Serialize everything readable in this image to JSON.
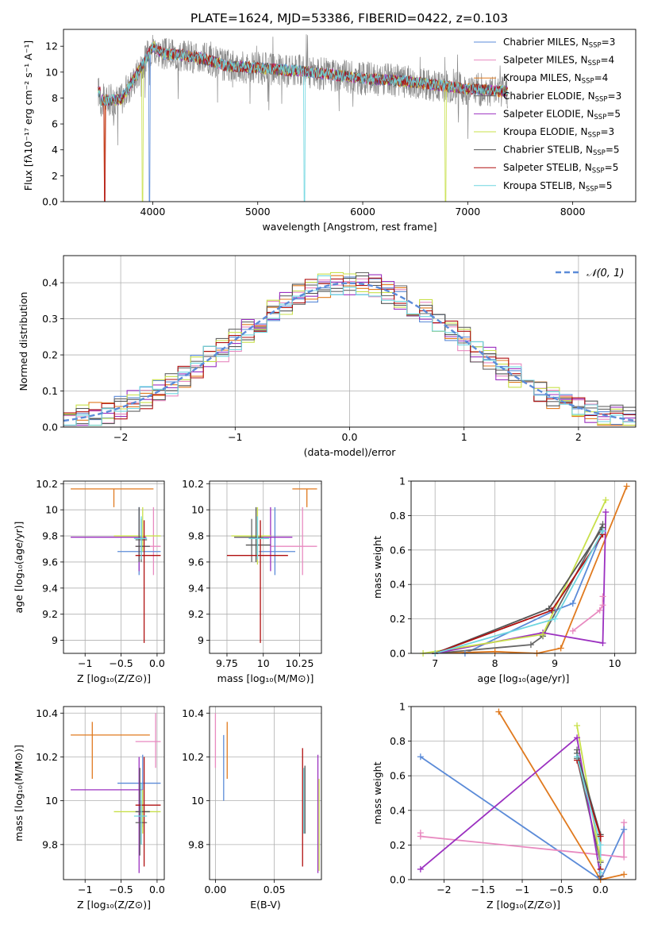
{
  "figure": {
    "title": "PLATE=1624, MJD=53386, FIBERID=0422, z=0.103",
    "colors": {
      "Chabrier MILES": "#5b8bd8",
      "Salpeter MILES": "#e88ac0",
      "Kroupa MILES": "#e07a1f",
      "Chabrier ELODIE": "#666666",
      "Salpeter ELODIE": "#9b30c0",
      "Kroupa ELODIE": "#c8e04a",
      "Chabrier STELIB": "#555555",
      "Salpeter STELIB": "#b01010",
      "Kroupa STELIB": "#6fd6e0",
      "spectrum": "#888888",
      "normal": "#5b8bd8"
    }
  },
  "chart_data": [
    {
      "id": "spectrum",
      "type": "line",
      "xlabel": "wavelength [Angstrom, rest frame]",
      "ylabel": "Flux [fλ10⁻¹⁷ erg cm⁻² s⁻¹ A⁻¹]",
      "xlim": [
        3150,
        8600
      ],
      "ylim": [
        0,
        13.3
      ],
      "xticks": [
        4000,
        5000,
        6000,
        7000,
        8000
      ],
      "yticks": [
        0,
        2,
        4,
        6,
        8,
        10,
        12
      ],
      "legend_position": "right",
      "legend": [
        {
          "model": "Chabrier MILES",
          "text": "Chabrier MILES, N",
          "sub": "SSP",
          "tail": "=3"
        },
        {
          "model": "Salpeter MILES",
          "text": "Salpeter MILES, N",
          "sub": "SSP",
          "tail": "=4"
        },
        {
          "model": "Kroupa MILES",
          "text": "Kroupa MILES, N",
          "sub": "SSP",
          "tail": "=4"
        },
        {
          "model": "Chabrier ELODIE",
          "text": "Chabrier ELODIE, N",
          "sub": "SSP",
          "tail": "=3"
        },
        {
          "model": "Salpeter ELODIE",
          "text": "Salpeter ELODIE, N",
          "sub": "SSP",
          "tail": "=5"
        },
        {
          "model": "Kroupa ELODIE",
          "text": "Kroupa ELODIE, N",
          "sub": "SSP",
          "tail": "=3"
        },
        {
          "model": "Chabrier STELIB",
          "text": "Chabrier STELIB, N",
          "sub": "SSP",
          "tail": "=5"
        },
        {
          "model": "Salpeter STELIB",
          "text": "Salpeter STELIB, N",
          "sub": "SSP",
          "tail": "=5"
        },
        {
          "model": "Kroupa STELIB",
          "text": "Kroupa STELIB, N",
          "sub": "SSP",
          "tail": "=5"
        }
      ],
      "continuum": {
        "x": [
          3500,
          3700,
          3900,
          4000,
          4100,
          4300,
          4500,
          4700,
          4860,
          5000,
          5200,
          5400,
          5600,
          5800,
          6000,
          6200,
          6400,
          6600,
          6800,
          7000,
          7200,
          7350
        ],
        "y": [
          7.8,
          7.9,
          10.5,
          12.0,
          11.4,
          11.3,
          11.0,
          10.5,
          10.4,
          10.3,
          10.2,
          10.1,
          9.9,
          9.7,
          9.5,
          9.4,
          9.3,
          9.1,
          8.9,
          8.7,
          8.6,
          8.5
        ]
      },
      "data_range": [
        3480,
        7380
      ],
      "model_range": [
        3480,
        7380
      ]
    },
    {
      "id": "residuals",
      "type": "line",
      "xlabel": "(data-model)/error",
      "ylabel": "Normed distribution",
      "xlim": [
        -2.5,
        2.5
      ],
      "ylim": [
        0,
        0.475
      ],
      "xticks": [
        -2,
        -1,
        0,
        1,
        2
      ],
      "yticks": [
        0.0,
        0.1,
        0.2,
        0.3,
        0.4
      ],
      "legend": [
        "𝒩(0, 1)"
      ],
      "legend_position": "top-right",
      "bins": 45
    },
    {
      "id": "age-vs-z",
      "type": "scatter",
      "xlabel": "Z [log₁₀(Z/Z⊙)]",
      "ylabel": "age  [log₁₀(age/yr)]",
      "xlim": [
        -1.3,
        0.1
      ],
      "ylim": [
        8.9,
        10.22
      ],
      "xticks": [
        -1.0,
        -0.5,
        0.0
      ],
      "yticks": [
        9.0,
        9.2,
        9.4,
        9.6,
        9.8,
        10.0,
        10.2
      ],
      "points": [
        {
          "model": "Kroupa MILES",
          "x": -0.6,
          "y": 10.16,
          "xlo": -1.2,
          "xhi": -0.05,
          "ylo": 10.02,
          "yhi": 10.16
        },
        {
          "model": "Salpeter MILES",
          "x": -0.05,
          "y": 9.72,
          "xlo": -0.3,
          "xhi": 0.05,
          "ylo": 9.5,
          "yhi": 10.02
        },
        {
          "model": "Chabrier MILES",
          "x": -0.25,
          "y": 9.68,
          "xlo": -0.55,
          "xhi": 0.05,
          "ylo": 9.5,
          "yhi": 10.02
        },
        {
          "model": "Salpeter ELODIE",
          "x": -0.25,
          "y": 9.79,
          "xlo": -1.2,
          "xhi": -0.15,
          "ylo": 9.53,
          "yhi": 9.82
        },
        {
          "model": "Kroupa ELODIE",
          "x": -0.2,
          "y": 9.8,
          "xlo": -0.6,
          "xhi": 0.05,
          "ylo": 9.68,
          "yhi": 10.02
        },
        {
          "model": "Chabrier ELODIE",
          "x": -0.22,
          "y": 9.77,
          "xlo": -0.3,
          "xhi": -0.14,
          "ylo": 9.6,
          "yhi": 9.93
        },
        {
          "model": "Chabrier STELIB",
          "x": -0.25,
          "y": 9.72,
          "xlo": -0.3,
          "xhi": -0.1,
          "ylo": 9.6,
          "yhi": 10.02
        },
        {
          "model": "Salpeter STELIB",
          "x": -0.18,
          "y": 9.65,
          "xlo": -0.3,
          "xhi": 0.05,
          "ylo": 8.98,
          "yhi": 9.92
        },
        {
          "model": "Kroupa STELIB",
          "x": -0.22,
          "y": 9.78,
          "xlo": -0.32,
          "xhi": -0.14,
          "ylo": 9.62,
          "yhi": 9.95
        }
      ]
    },
    {
      "id": "age-vs-mass",
      "type": "scatter",
      "xlabel": "mass [log₁₀(M/M⊙)]",
      "ylabel": "",
      "xlim": [
        9.63,
        10.4
      ],
      "ylim": [
        8.9,
        10.22
      ],
      "xticks": [
        9.75,
        10.0,
        10.25
      ],
      "yticks": [
        9.0,
        9.2,
        9.4,
        9.6,
        9.8,
        10.0,
        10.2
      ],
      "points": [
        {
          "model": "Kroupa MILES",
          "x": 10.3,
          "y": 10.16,
          "xlo": 10.2,
          "xhi": 10.37,
          "ylo": 10.02,
          "yhi": 10.16
        },
        {
          "model": "Salpeter MILES",
          "x": 10.27,
          "y": 9.72,
          "xlo": 10.05,
          "xhi": 10.37,
          "ylo": 9.5,
          "yhi": 10.02
        },
        {
          "model": "Chabrier MILES",
          "x": 10.08,
          "y": 9.68,
          "xlo": 9.97,
          "xhi": 10.22,
          "ylo": 9.5,
          "yhi": 10.02
        },
        {
          "model": "Salpeter ELODIE",
          "x": 10.05,
          "y": 9.79,
          "xlo": 9.8,
          "xhi": 10.2,
          "ylo": 9.53,
          "yhi": 10.02
        },
        {
          "model": "Kroupa ELODIE",
          "x": 9.96,
          "y": 9.8,
          "xlo": 9.78,
          "xhi": 10.05,
          "ylo": 9.58,
          "yhi": 10.02
        },
        {
          "model": "Chabrier ELODIE",
          "x": 9.92,
          "y": 9.79,
          "xlo": 9.8,
          "xhi": 10.0,
          "ylo": 9.6,
          "yhi": 9.93
        },
        {
          "model": "Chabrier STELIB",
          "x": 9.95,
          "y": 9.73,
          "xlo": 9.88,
          "xhi": 10.05,
          "ylo": 9.6,
          "yhi": 10.02
        },
        {
          "model": "Salpeter STELIB",
          "x": 9.98,
          "y": 9.65,
          "xlo": 9.75,
          "xhi": 10.17,
          "ylo": 8.98,
          "yhi": 9.92
        },
        {
          "model": "Kroupa STELIB",
          "x": 9.96,
          "y": 9.78,
          "xlo": 9.9,
          "xhi": 10.04,
          "ylo": 9.62,
          "yhi": 9.95
        }
      ]
    },
    {
      "id": "massweight-vs-age",
      "type": "line",
      "xlabel": "age  [log₁₀(age/yr)]",
      "ylabel": "mass weight",
      "xlim": [
        6.6,
        10.35
      ],
      "ylim": [
        0,
        1.0
      ],
      "xticks": [
        7,
        8,
        9,
        10
      ],
      "yticks": [
        0.0,
        0.2,
        0.4,
        0.6,
        0.8,
        1.0
      ],
      "series": [
        {
          "model": "Chabrier MILES",
          "x": [
            7.5,
            9.0,
            9.3,
            9.8
          ],
          "y": [
            0.0,
            0.25,
            0.29,
            0.71
          ]
        },
        {
          "model": "Salpeter MILES",
          "x": [
            9.3,
            9.75,
            9.8,
            9.8
          ],
          "y": [
            0.13,
            0.25,
            0.28,
            0.33
          ]
        },
        {
          "model": "Kroupa MILES",
          "x": [
            7.0,
            8.0,
            8.7,
            9.1,
            10.2
          ],
          "y": [
            0.0,
            0.01,
            0.0,
            0.03,
            0.97
          ]
        },
        {
          "model": "Chabrier ELODIE",
          "x": [
            7.0,
            8.6,
            8.8,
            9.8
          ],
          "y": [
            0.0,
            0.05,
            0.1,
            0.75
          ]
        },
        {
          "model": "Salpeter ELODIE",
          "x": [
            7.0,
            8.8,
            9.8,
            9.85
          ],
          "y": [
            0.0,
            0.12,
            0.06,
            0.82
          ]
        },
        {
          "model": "Kroupa ELODIE",
          "x": [
            6.8,
            8.8,
            9.85
          ],
          "y": [
            0.0,
            0.11,
            0.89
          ]
        },
        {
          "model": "Chabrier STELIB",
          "x": [
            7.0,
            8.9,
            9.8
          ],
          "y": [
            0.0,
            0.26,
            0.73
          ]
        },
        {
          "model": "Salpeter STELIB",
          "x": [
            7.0,
            8.95,
            9.8
          ],
          "y": [
            0.0,
            0.25,
            0.69
          ]
        },
        {
          "model": "Kroupa STELIB",
          "x": [
            7.0,
            9.0,
            9.8
          ],
          "y": [
            0.0,
            0.2,
            0.71
          ]
        }
      ]
    },
    {
      "id": "mass-vs-z",
      "type": "scatter",
      "xlabel": "Z [log₁₀(Z/Z⊙)]",
      "ylabel": "mass [log₁₀(M/M⊙)]",
      "xlim": [
        -1.3,
        0.1
      ],
      "ylim": [
        9.64,
        10.43
      ],
      "xticks": [
        -1.0,
        -0.5,
        0.0
      ],
      "yticks": [
        9.8,
        10.0,
        10.2,
        10.4
      ],
      "points": [
        {
          "model": "Kroupa MILES",
          "x": -0.9,
          "y": 10.3,
          "xlo": -1.2,
          "xhi": -0.1,
          "ylo": 10.1,
          "yhi": 10.36
        },
        {
          "model": "Salpeter MILES",
          "x": -0.02,
          "y": 10.27,
          "xlo": -0.3,
          "xhi": 0.05,
          "ylo": 10.15,
          "yhi": 10.4
        },
        {
          "model": "Chabrier MILES",
          "x": -0.2,
          "y": 10.08,
          "xlo": -0.55,
          "xhi": 0.05,
          "ylo": 9.88,
          "yhi": 10.21
        },
        {
          "model": "Salpeter ELODIE",
          "x": -0.25,
          "y": 10.05,
          "xlo": -1.2,
          "xhi": -0.2,
          "ylo": 9.67,
          "yhi": 10.2
        },
        {
          "model": "Kroupa ELODIE",
          "x": -0.2,
          "y": 9.95,
          "xlo": -0.6,
          "xhi": 0.05,
          "ylo": 9.85,
          "yhi": 10.05
        },
        {
          "model": "Chabrier ELODIE",
          "x": -0.22,
          "y": 9.9,
          "xlo": -0.3,
          "xhi": -0.14,
          "ylo": 9.8,
          "yhi": 10.0
        },
        {
          "model": "Chabrier STELIB",
          "x": -0.24,
          "y": 9.95,
          "xlo": -0.3,
          "xhi": -0.1,
          "ylo": 9.75,
          "yhi": 10.15
        },
        {
          "model": "Salpeter STELIB",
          "x": -0.18,
          "y": 9.98,
          "xlo": -0.3,
          "xhi": 0.05,
          "ylo": 9.7,
          "yhi": 10.2
        },
        {
          "model": "Kroupa STELIB",
          "x": -0.22,
          "y": 9.93,
          "xlo": -0.32,
          "xhi": -0.14,
          "ylo": 9.8,
          "yhi": 10.08
        }
      ]
    },
    {
      "id": "mass-vs-ebv",
      "type": "scatter",
      "xlabel": "E(B-V)",
      "ylabel": "",
      "xlim": [
        -0.005,
        0.09
      ],
      "ylim": [
        9.64,
        10.43
      ],
      "xticks": [
        0.0,
        0.05
      ],
      "xticklabels": [
        "0.00",
        "0.05"
      ],
      "yticks": [
        9.8,
        10.0,
        10.2,
        10.4
      ],
      "points": [
        {
          "model": "Salpeter MILES",
          "x": 0.0,
          "y": 10.27,
          "ylo": 10.15,
          "yhi": 10.4
        },
        {
          "model": "Chabrier MILES",
          "x": 0.007,
          "y": 10.15,
          "ylo": 10.0,
          "yhi": 10.3
        },
        {
          "model": "Kroupa MILES",
          "x": 0.01,
          "y": 10.23,
          "ylo": 10.1,
          "yhi": 10.36
        },
        {
          "model": "Salpeter STELIB",
          "x": 0.074,
          "y": 9.97,
          "ylo": 9.7,
          "yhi": 10.24
        },
        {
          "model": "Kroupa STELIB",
          "x": 0.075,
          "y": 10.0,
          "ylo": 9.85,
          "yhi": 10.15
        },
        {
          "model": "Chabrier STELIB",
          "x": 0.076,
          "y": 10.01,
          "ylo": 9.85,
          "yhi": 10.16
        },
        {
          "model": "Salpeter ELODIE",
          "x": 0.087,
          "y": 9.95,
          "ylo": 9.67,
          "yhi": 10.21
        },
        {
          "model": "Kroupa ELODIE",
          "x": 0.088,
          "y": 9.9,
          "ylo": 9.68,
          "yhi": 10.1
        }
      ]
    },
    {
      "id": "massweight-vs-z",
      "type": "line",
      "xlabel": "Z [log₁₀(Z/Z⊙)]",
      "ylabel": "mass weight",
      "xlim": [
        -2.42,
        0.45
      ],
      "ylim": [
        0,
        1.0
      ],
      "xticks": [
        -2.0,
        -1.5,
        -1.0,
        -0.5,
        0.0
      ],
      "yticks": [
        0.0,
        0.2,
        0.4,
        0.6,
        0.8,
        1.0
      ],
      "series": [
        {
          "model": "Chabrier MILES",
          "x": [
            -2.3,
            0.0,
            0.3
          ],
          "y": [
            0.71,
            0.0,
            0.29
          ]
        },
        {
          "model": "Salpeter MILES",
          "x": [
            -2.3,
            -2.3,
            0.3,
            0.3
          ],
          "y": [
            0.27,
            0.25,
            0.13,
            0.33
          ]
        },
        {
          "model": "Kroupa MILES",
          "x": [
            -1.3,
            0.0,
            0.3
          ],
          "y": [
            0.97,
            0.0,
            0.03
          ]
        },
        {
          "model": "Chabrier ELODIE",
          "x": [
            -0.3,
            -0.3,
            0.0
          ],
          "y": [
            0.75,
            0.7,
            0.1
          ]
        },
        {
          "model": "Salpeter ELODIE",
          "x": [
            -2.3,
            -0.3,
            0.0
          ],
          "y": [
            0.06,
            0.82,
            0.02
          ]
        },
        {
          "model": "Kroupa ELODIE",
          "x": [
            -0.3,
            0.0
          ],
          "y": [
            0.89,
            0.11
          ]
        },
        {
          "model": "Chabrier STELIB",
          "x": [
            -0.3,
            0.0,
            0.0
          ],
          "y": [
            0.73,
            0.26,
            0.02
          ]
        },
        {
          "model": "Salpeter STELIB",
          "x": [
            -0.3,
            0.0,
            0.0
          ],
          "y": [
            0.69,
            0.25,
            0.06
          ]
        },
        {
          "model": "Kroupa STELIB",
          "x": [
            -0.3,
            0.0,
            0.0
          ],
          "y": [
            0.71,
            0.2,
            0.04
          ]
        }
      ]
    }
  ]
}
